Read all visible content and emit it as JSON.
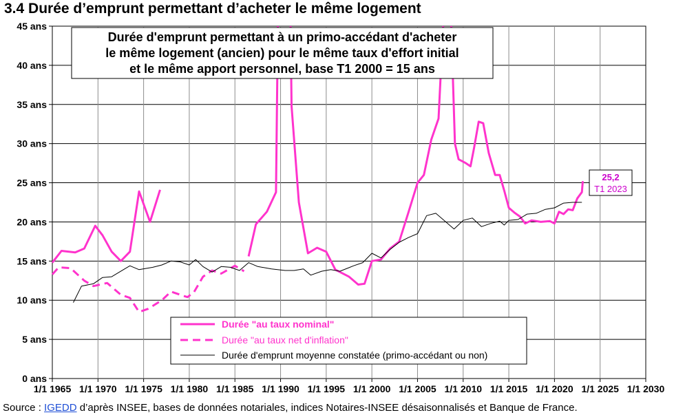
{
  "page": {
    "title": "3.4 Durée d’emprunt permettant d’acheter le même logement",
    "source_prefix": "Source : ",
    "source_link": "IGEDD",
    "source_suffix": " d’après INSEE, bases de données notariales, indices Notaires-INSEE désaisonnalisés et Banque de France."
  },
  "chart_data": {
    "type": "line",
    "subtitle": [
      "Durée d'emprunt permettant à un primo-accédant d'acheter",
      "le même logement (ancien) pour le même taux d'effort initial",
      "et le même apport personnel, base T1 2000 = 15 ans"
    ],
    "xlim": [
      1965,
      2030
    ],
    "ylim": [
      0,
      45
    ],
    "grid": true,
    "legend_position": "bottom-center",
    "y_ticks": [
      {
        "value": 0,
        "label": "0 ans"
      },
      {
        "value": 5,
        "label": "5 ans"
      },
      {
        "value": 10,
        "label": "10 ans"
      },
      {
        "value": 15,
        "label": "15 ans"
      },
      {
        "value": 20,
        "label": "20 ans"
      },
      {
        "value": 25,
        "label": "25 ans"
      },
      {
        "value": 30,
        "label": "30 ans"
      },
      {
        "value": 35,
        "label": "35 ans"
      },
      {
        "value": 40,
        "label": "40 ans"
      },
      {
        "value": 45,
        "label": "45 ans"
      }
    ],
    "x_ticks": [
      {
        "value": 1965,
        "label": "1/1 1965"
      },
      {
        "value": 1970,
        "label": "1/1 1970"
      },
      {
        "value": 1975,
        "label": "1/1 1975"
      },
      {
        "value": 1980,
        "label": "1/1 1980"
      },
      {
        "value": 1985,
        "label": "1/1 1985"
      },
      {
        "value": 1990,
        "label": "1/1 1990"
      },
      {
        "value": 1995,
        "label": "1/1 1995"
      },
      {
        "value": 2000,
        "label": "1/1 2000"
      },
      {
        "value": 2005,
        "label": "1/1 2005"
      },
      {
        "value": 2010,
        "label": "1/1 2010"
      },
      {
        "value": 2015,
        "label": "1/1 2015"
      },
      {
        "value": 2020,
        "label": "1/1 2020"
      },
      {
        "value": 2025,
        "label": "1/1 2025"
      },
      {
        "value": 2030,
        "label": "1/1 2030"
      }
    ],
    "series": [
      {
        "name": "Durée \"au taux nominal\"",
        "color": "#ff33cc",
        "style": "solid-thick",
        "segments": [
          [
            [
              1965,
              14.8
            ],
            [
              1966,
              16.3
            ],
            [
              1967.5,
              16.1
            ],
            [
              1968.5,
              16.6
            ],
            [
              1969.7,
              19.5
            ],
            [
              1970.5,
              18.3
            ],
            [
              1971.5,
              16.2
            ],
            [
              1972.5,
              15.0
            ],
            [
              1973.5,
              16.2
            ],
            [
              1974.5,
              23.9
            ],
            [
              1975.7,
              20.0
            ],
            [
              1976.8,
              24.1
            ]
          ],
          [
            [
              1986.5,
              15.6
            ],
            [
              1987.3,
              19.7
            ],
            [
              1988.5,
              21.3
            ],
            [
              1989.5,
              23.8
            ],
            [
              1989.7,
              45.0
            ]
          ],
          [
            [
              1991.1,
              45.0
            ],
            [
              1991.2,
              34.8
            ],
            [
              1992.0,
              22.5
            ],
            [
              1993.0,
              16.0
            ],
            [
              1994.0,
              16.7
            ],
            [
              1995.0,
              16.2
            ],
            [
              1996.0,
              13.9
            ],
            [
              1997.5,
              13.0
            ],
            [
              1998.5,
              12.0
            ],
            [
              1999.2,
              12.1
            ],
            [
              2000.0,
              15.0
            ],
            [
              2001.0,
              15.2
            ],
            [
              2002.0,
              16.6
            ],
            [
              2003.0,
              17.5
            ],
            [
              2004.0,
              21.2
            ],
            [
              2005.0,
              25.0
            ],
            [
              2005.7,
              26.0
            ],
            [
              2006.5,
              30.5
            ],
            [
              2007.3,
              33.2
            ],
            [
              2007.8,
              45.0
            ]
          ],
          [
            [
              2008.7,
              45.0
            ],
            [
              2009.1,
              30.0
            ],
            [
              2009.5,
              28.0
            ],
            [
              2010.3,
              27.5
            ],
            [
              2010.8,
              27.1
            ],
            [
              2011.2,
              29.5
            ],
            [
              2011.7,
              32.8
            ],
            [
              2012.2,
              32.6
            ],
            [
              2012.8,
              28.8
            ],
            [
              2013.5,
              26.0
            ],
            [
              2014.0,
              26.0
            ],
            [
              2014.5,
              24.0
            ],
            [
              2015.0,
              21.8
            ],
            [
              2015.6,
              21.2
            ],
            [
              2016.2,
              20.7
            ],
            [
              2016.8,
              19.8
            ],
            [
              2017.5,
              20.2
            ],
            [
              2018.5,
              20.0
            ],
            [
              2019.5,
              20.1
            ],
            [
              2020.0,
              19.8
            ],
            [
              2020.5,
              21.3
            ],
            [
              2021.0,
              21.0
            ],
            [
              2021.5,
              21.6
            ],
            [
              2022.0,
              21.5
            ],
            [
              2022.5,
              23.0
            ],
            [
              2023.0,
              23.8
            ],
            [
              2023.1,
              25.2
            ]
          ]
        ]
      },
      {
        "name": "Durée \"au taux net d'inflation\"",
        "color": "#ff33cc",
        "style": "dashed",
        "segments": [
          [
            [
              1965,
              13.3
            ],
            [
              1965.7,
              14.2
            ],
            [
              1967,
              14.1
            ],
            [
              1968.5,
              12.5
            ],
            [
              1969.5,
              11.8
            ],
            [
              1971,
              12.2
            ],
            [
              1972.5,
              10.7
            ],
            [
              1973.5,
              10.3
            ],
            [
              1974.5,
              8.5
            ],
            [
              1975.5,
              8.9
            ],
            [
              1977,
              10.0
            ],
            [
              1978,
              11.1
            ],
            [
              1979,
              10.7
            ],
            [
              1979.8,
              10.4
            ],
            [
              1980.5,
              11.0
            ],
            [
              1981.5,
              13.0
            ],
            [
              1982.5,
              13.8
            ],
            [
              1983.5,
              13.4
            ],
            [
              1985,
              14.4
            ],
            [
              1986,
              13.7
            ]
          ]
        ]
      },
      {
        "name": "Durée d'emprunt moyenne constatée (primo-accédant ou non)",
        "color": "#000000",
        "style": "solid-thin",
        "segments": [
          [
            [
              1967.3,
              9.7
            ],
            [
              1968.2,
              11.8
            ],
            [
              1969.5,
              12.1
            ],
            [
              1970.5,
              12.9
            ],
            [
              1971.5,
              13.0
            ],
            [
              1972.5,
              13.7
            ],
            [
              1973.5,
              14.4
            ],
            [
              1974.5,
              13.9
            ],
            [
              1976,
              14.2
            ],
            [
              1977,
              14.5
            ],
            [
              1978,
              15.0
            ],
            [
              1979,
              14.9
            ],
            [
              1980,
              14.5
            ],
            [
              1980.7,
              15.2
            ],
            [
              1981.5,
              14.3
            ],
            [
              1982.5,
              13.6
            ],
            [
              1983.5,
              14.3
            ],
            [
              1984.5,
              14.2
            ],
            [
              1985.5,
              13.8
            ],
            [
              1986.5,
              14.8
            ],
            [
              1987.5,
              14.3
            ],
            [
              1989,
              14.0
            ],
            [
              1990.5,
              13.8
            ],
            [
              1991.5,
              13.8
            ],
            [
              1992.5,
              14.0
            ],
            [
              1993.3,
              13.2
            ],
            [
              1994.5,
              13.7
            ],
            [
              1995.5,
              13.9
            ],
            [
              1996.5,
              13.7
            ],
            [
              1998,
              14.4
            ],
            [
              1999,
              14.8
            ],
            [
              2000,
              16.0
            ],
            [
              2001,
              15.4
            ],
            [
              2002,
              16.5
            ],
            [
              2003,
              17.4
            ],
            [
              2004,
              18.0
            ],
            [
              2005,
              18.5
            ],
            [
              2006,
              20.8
            ],
            [
              2007,
              21.1
            ],
            [
              2008,
              20.1
            ],
            [
              2009,
              19.1
            ],
            [
              2010,
              20.2
            ],
            [
              2011,
              20.5
            ],
            [
              2012,
              19.4
            ],
            [
              2013,
              19.8
            ],
            [
              2014,
              20.1
            ],
            [
              2014.5,
              19.6
            ],
            [
              2015,
              20.2
            ],
            [
              2016,
              20.3
            ],
            [
              2017,
              21.0
            ],
            [
              2018,
              21.1
            ],
            [
              2019,
              21.6
            ],
            [
              2020,
              21.8
            ],
            [
              2021,
              22.4
            ],
            [
              2022,
              22.5
            ],
            [
              2023,
              22.5
            ]
          ]
        ]
      }
    ],
    "annotation": {
      "value": "25,2",
      "label": "T1 2023",
      "x": 2023.1,
      "y": 25.2
    }
  }
}
